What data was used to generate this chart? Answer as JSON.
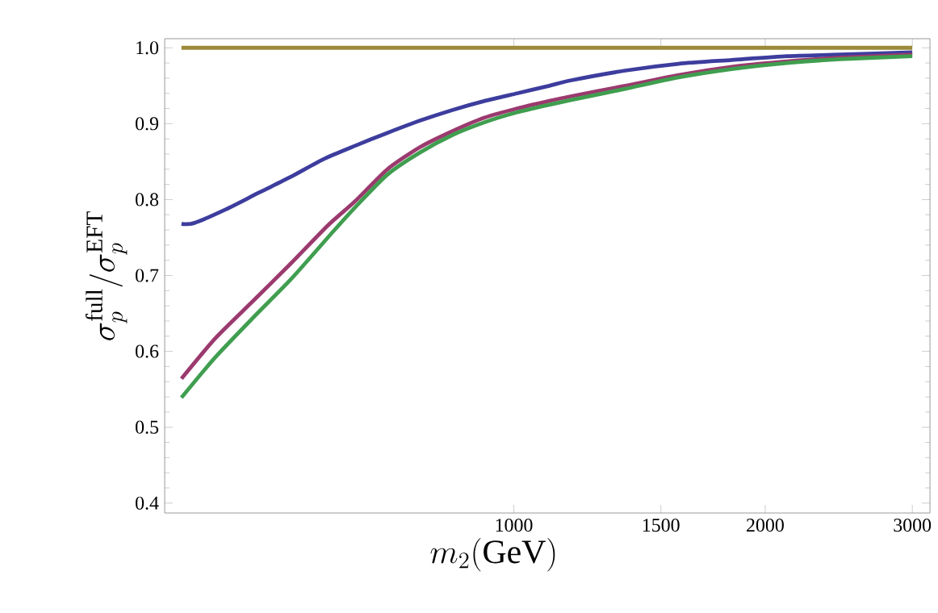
{
  "chart_data": {
    "type": "line",
    "xlabel": "m_2(\\mathrm{GeV})",
    "ylabel": "\\sigma_p^{\\mathrm{full}}/\\sigma_p^{\\mathrm{EFT}}",
    "log": "x",
    "xlim": [
      382,
      3150
    ],
    "ylim": [
      0.387,
      1.012
    ],
    "xticks": [
      1000,
      1500,
      2000,
      3000
    ],
    "yticks": [
      0.4,
      0.5,
      0.6,
      0.7,
      0.8,
      0.9,
      {
        "value": 1.0,
        "label": "1.0"
      }
    ],
    "marker": "none",
    "line_style": "solid",
    "series": [
      {
        "color": "#9a8a3a",
        "x": [
          400,
          3000
        ],
        "values": [
          1.0,
          1.0
        ]
      },
      {
        "color": "#3d3d9e",
        "x": [
          400,
          414,
          452,
          495,
          541,
          591,
          646,
          706,
          772,
          844,
          923,
          1009,
          1103,
          1169,
          1360,
          1575,
          1824,
          2123,
          2459,
          3000
        ],
        "values": [
          0.768,
          0.769,
          0.787,
          0.809,
          0.83,
          0.853,
          0.871,
          0.888,
          0.904,
          0.918,
          0.93,
          0.94,
          0.95,
          0.957,
          0.97,
          0.979,
          0.984,
          0.989,
          0.991,
          0.994
        ]
      },
      {
        "color": "#9b3a6e",
        "x": [
          400,
          439,
          488,
          541,
          599,
          646,
          706,
          772,
          844,
          923,
          1009,
          1103,
          1169,
          1360,
          1575,
          1824,
          2123,
          2459,
          3000
        ],
        "values": [
          0.564,
          0.617,
          0.667,
          0.716,
          0.766,
          0.798,
          0.84,
          0.869,
          0.89,
          0.908,
          0.92,
          0.93,
          0.936,
          0.95,
          0.964,
          0.975,
          0.982,
          0.987,
          0.991
        ]
      },
      {
        "color": "#3f9e4f",
        "x": [
          400,
          439,
          488,
          541,
          609,
          646,
          706,
          772,
          844,
          923,
          1009,
          1103,
          1169,
          1360,
          1575,
          1824,
          2123,
          2459,
          3000
        ],
        "values": [
          0.539,
          0.592,
          0.645,
          0.695,
          0.759,
          0.79,
          0.833,
          0.862,
          0.885,
          0.902,
          0.915,
          0.925,
          0.931,
          0.946,
          0.961,
          0.972,
          0.98,
          0.985,
          0.989
        ]
      }
    ]
  }
}
